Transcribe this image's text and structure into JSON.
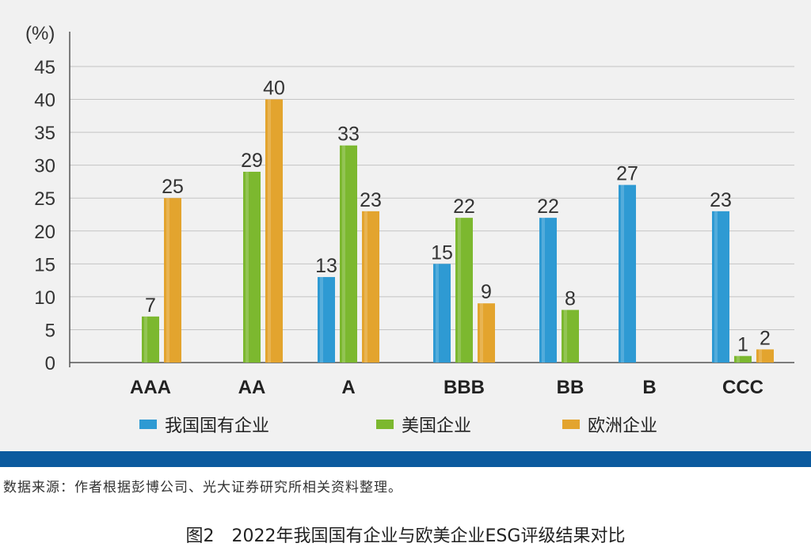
{
  "chart_data": {
    "type": "bar",
    "unit_label": "(%)",
    "categories": [
      "AAA",
      "AA",
      "A",
      "BBB",
      "BB",
      "B",
      "CCC"
    ],
    "series": [
      {
        "name": "我国国有企业",
        "color": "#2e9ad3",
        "values": [
          null,
          null,
          13,
          15,
          22,
          27,
          23
        ]
      },
      {
        "name": "美国企业",
        "color": "#7cb82f",
        "values": [
          7,
          29,
          33,
          22,
          8,
          null,
          1
        ]
      },
      {
        "name": "欧洲企业",
        "color": "#e3a42e",
        "values": [
          25,
          40,
          23,
          9,
          null,
          null,
          2
        ]
      }
    ],
    "data_labels": [
      [
        "",
        "",
        "13",
        "15",
        "22",
        "27",
        "23"
      ],
      [
        "7",
        "29",
        "33",
        "22",
        "8",
        "",
        "1"
      ],
      [
        "25",
        "40",
        "23",
        "9",
        "",
        "",
        "2"
      ]
    ],
    "yticks": [
      "0",
      "5",
      "10",
      "15",
      "20",
      "25",
      "30",
      "35",
      "40",
      "45"
    ],
    "ylim": [
      0,
      45
    ],
    "grid": true,
    "legend_position": "bottom"
  },
  "source_note": "数据来源：作者根据彭博公司、光大证券研究所相关资料整理。",
  "caption": "图2　2022年我国国有企业与欧美企业ESG评级结果对比"
}
